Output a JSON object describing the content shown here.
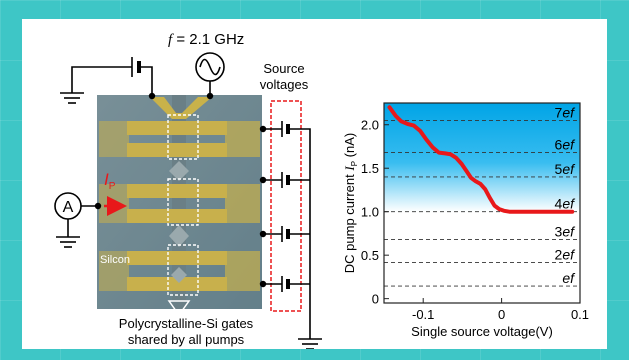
{
  "diagram": {
    "freq_prefix": "f",
    "freq_value": " = 2.1 GHz",
    "source_label_line1": "Source",
    "source_label_line2": "voltages",
    "ammeter_label": "A",
    "current_label": "I",
    "current_sub": "P",
    "silicon_label": "Silcon",
    "gates_caption_line1": "Polycrystalline-Si gates",
    "gates_caption_line2": "shared by all pumps"
  },
  "chart_data": {
    "type": "line",
    "xlabel": "Single source voltage(V)",
    "ylabel_prefix": "DC pump current ",
    "ylabel_symbol": "I",
    "ylabel_sub": "P",
    "ylabel_suffix": " (nA)",
    "xlim": [
      -0.15,
      0.1
    ],
    "ylim": [
      -0.05,
      2.25
    ],
    "xticks": [
      -0.1,
      0,
      0.1
    ],
    "xtick_labels": [
      "-0.1",
      "0",
      "0.1"
    ],
    "yticks": [
      0,
      0.5,
      1.0,
      1.5,
      2.0
    ],
    "ytick_labels": [
      "0",
      "0.5",
      "1.0",
      "1.5",
      "2.0"
    ],
    "plateau_levels": [
      {
        "label": "ef",
        "value": 0.145
      },
      {
        "label": "2ef",
        "value": 0.415
      },
      {
        "label": "3ef",
        "value": 0.68
      },
      {
        "label": "4ef",
        "value": 1.0
      },
      {
        "label": "5ef",
        "value": 1.4
      },
      {
        "label": "6ef",
        "value": 1.68
      },
      {
        "label": "7ef",
        "value": 2.05
      }
    ],
    "series": [
      {
        "color": "#e8181a",
        "x": [
          -0.143,
          -0.135,
          -0.128,
          -0.12,
          -0.112,
          -0.104,
          -0.096,
          -0.088,
          -0.08,
          -0.072,
          -0.065,
          -0.058,
          -0.051,
          -0.045,
          -0.039,
          -0.033,
          -0.027,
          -0.021,
          -0.015,
          -0.009,
          -0.003,
          0.003,
          0.01,
          0.02,
          0.04,
          0.06,
          0.09
        ],
        "y": [
          2.2,
          2.1,
          2.04,
          2.01,
          1.99,
          1.93,
          1.83,
          1.74,
          1.68,
          1.67,
          1.66,
          1.62,
          1.55,
          1.47,
          1.39,
          1.35,
          1.32,
          1.26,
          1.16,
          1.07,
          1.03,
          1.01,
          1.0,
          1.0,
          1.0,
          1.0,
          1.0
        ]
      }
    ],
    "colors": {
      "fill_top": "#00a8e8",
      "fill_bottom": "#ffffff",
      "axis": "#222222",
      "level_line": "#333333"
    }
  }
}
